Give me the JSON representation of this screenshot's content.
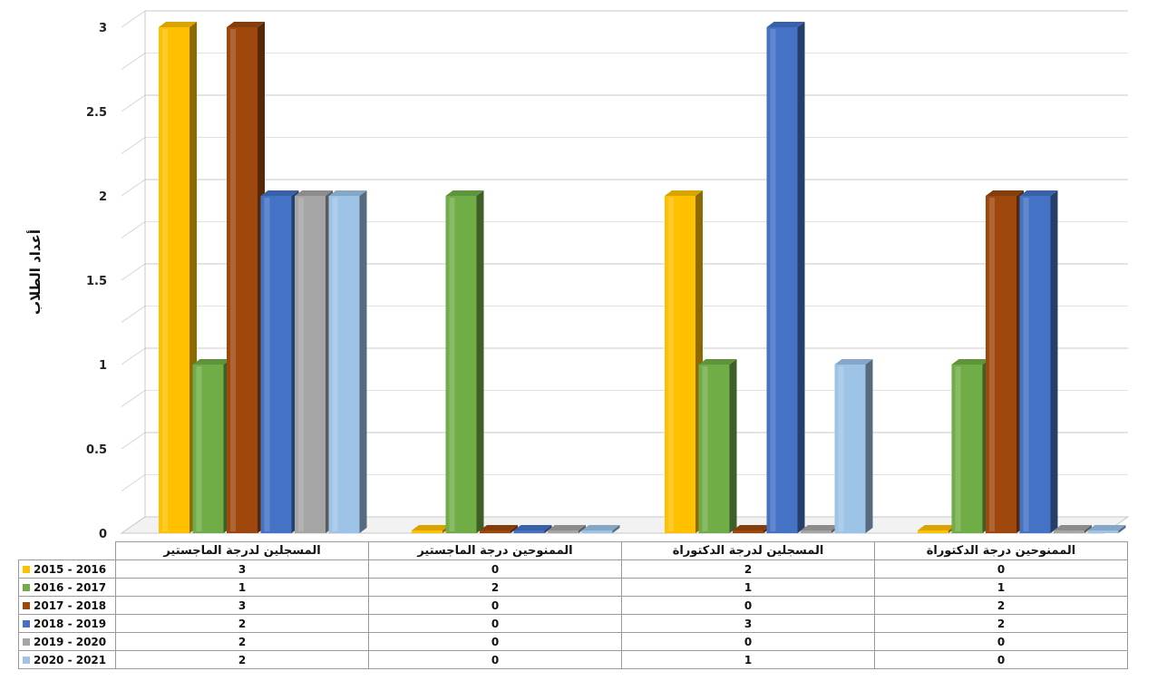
{
  "chart_data": {
    "type": "bar",
    "ylabel": "أعداد الطلاب",
    "xlabel": "",
    "title": "",
    "ylim": [
      0,
      3
    ],
    "yticks": [
      "0",
      "0.5",
      "1",
      "1.5",
      "2",
      "2.5",
      "3"
    ],
    "categories": [
      "المسجلين لدرجة الماجستير",
      "الممنوحين درجة الماجستير",
      "المسجلين لدرجة الدكتوراة",
      "الممنوحين درجة الدكتوراة"
    ],
    "series": [
      {
        "name": "2015 - 2016",
        "color": "#FFC000",
        "values": [
          3,
          0,
          2,
          0
        ]
      },
      {
        "name": "2016 - 2017",
        "color": "#70AD47",
        "values": [
          1,
          2,
          1,
          1
        ]
      },
      {
        "name": "2017 - 2018",
        "color": "#9E480E",
        "values": [
          3,
          0,
          0,
          2
        ]
      },
      {
        "name": "2018 - 2019",
        "color": "#4472C4",
        "values": [
          2,
          0,
          3,
          2
        ]
      },
      {
        "name": "2019 - 2020",
        "color": "#A5A5A5",
        "values": [
          2,
          0,
          0,
          0
        ]
      },
      {
        "name": "2020 - 2021",
        "color": "#9DC3E6",
        "values": [
          2,
          0,
          1,
          0
        ]
      }
    ],
    "grid": true,
    "legend": "data-table"
  }
}
